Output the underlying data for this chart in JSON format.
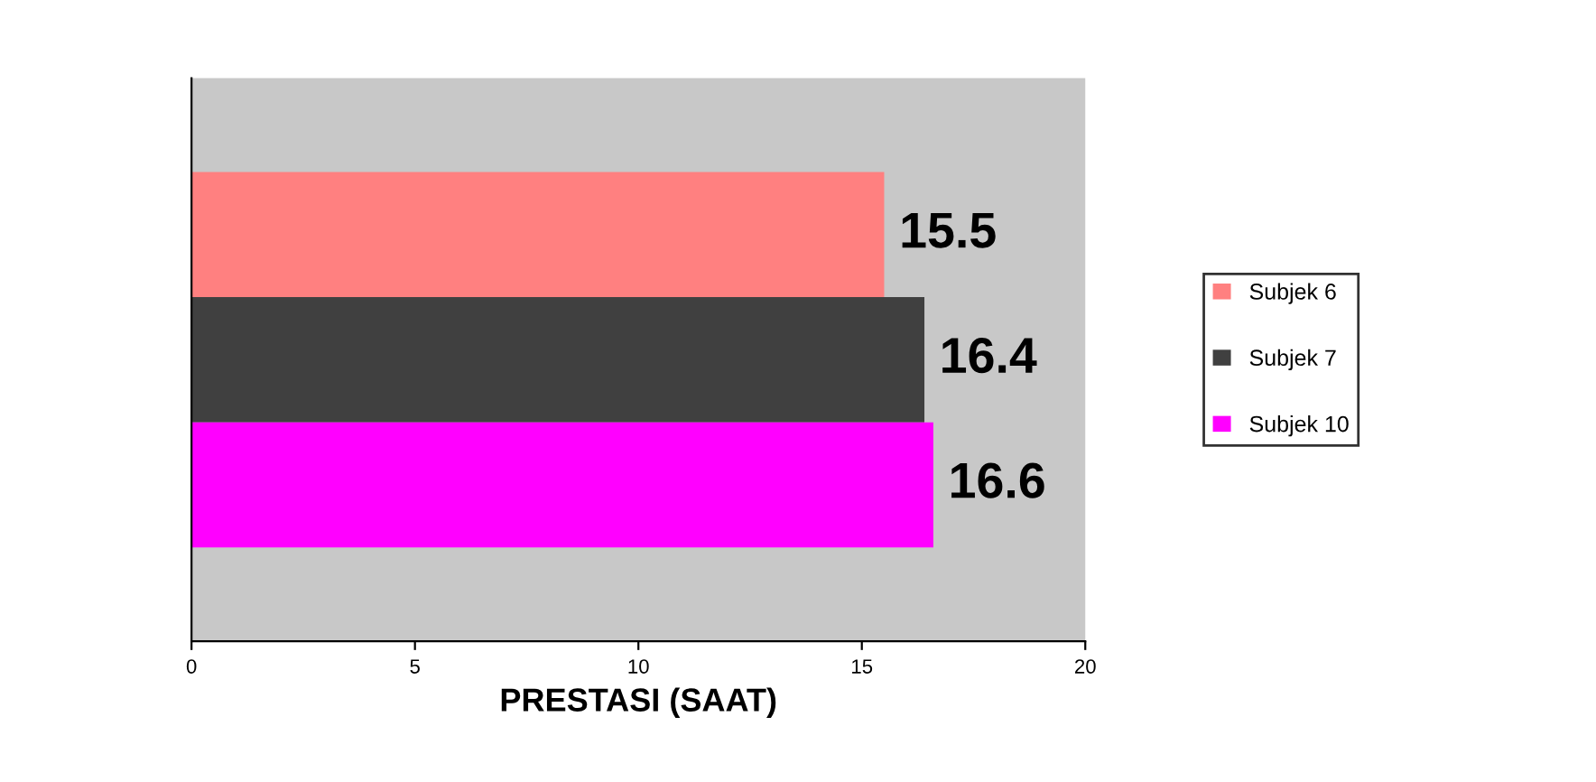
{
  "chart_data": {
    "type": "bar",
    "orientation": "horizontal",
    "xlabel": "PRESTASI (SAAT)",
    "categories": [
      null
    ],
    "series": [
      {
        "name": "Subjek 6",
        "color": "#ff8080",
        "values": [
          15.5
        ]
      },
      {
        "name": "Subjek 7",
        "color": "#404040",
        "values": [
          16.4
        ]
      },
      {
        "name": "Subjek 10",
        "color": "#ff00ff",
        "values": [
          16.6
        ]
      }
    ],
    "xlim": [
      0,
      20
    ],
    "xticks": [
      0,
      5,
      10,
      15,
      20
    ],
    "data_labels": true,
    "grid": false,
    "legend": "right",
    "tick_labels": "x"
  }
}
